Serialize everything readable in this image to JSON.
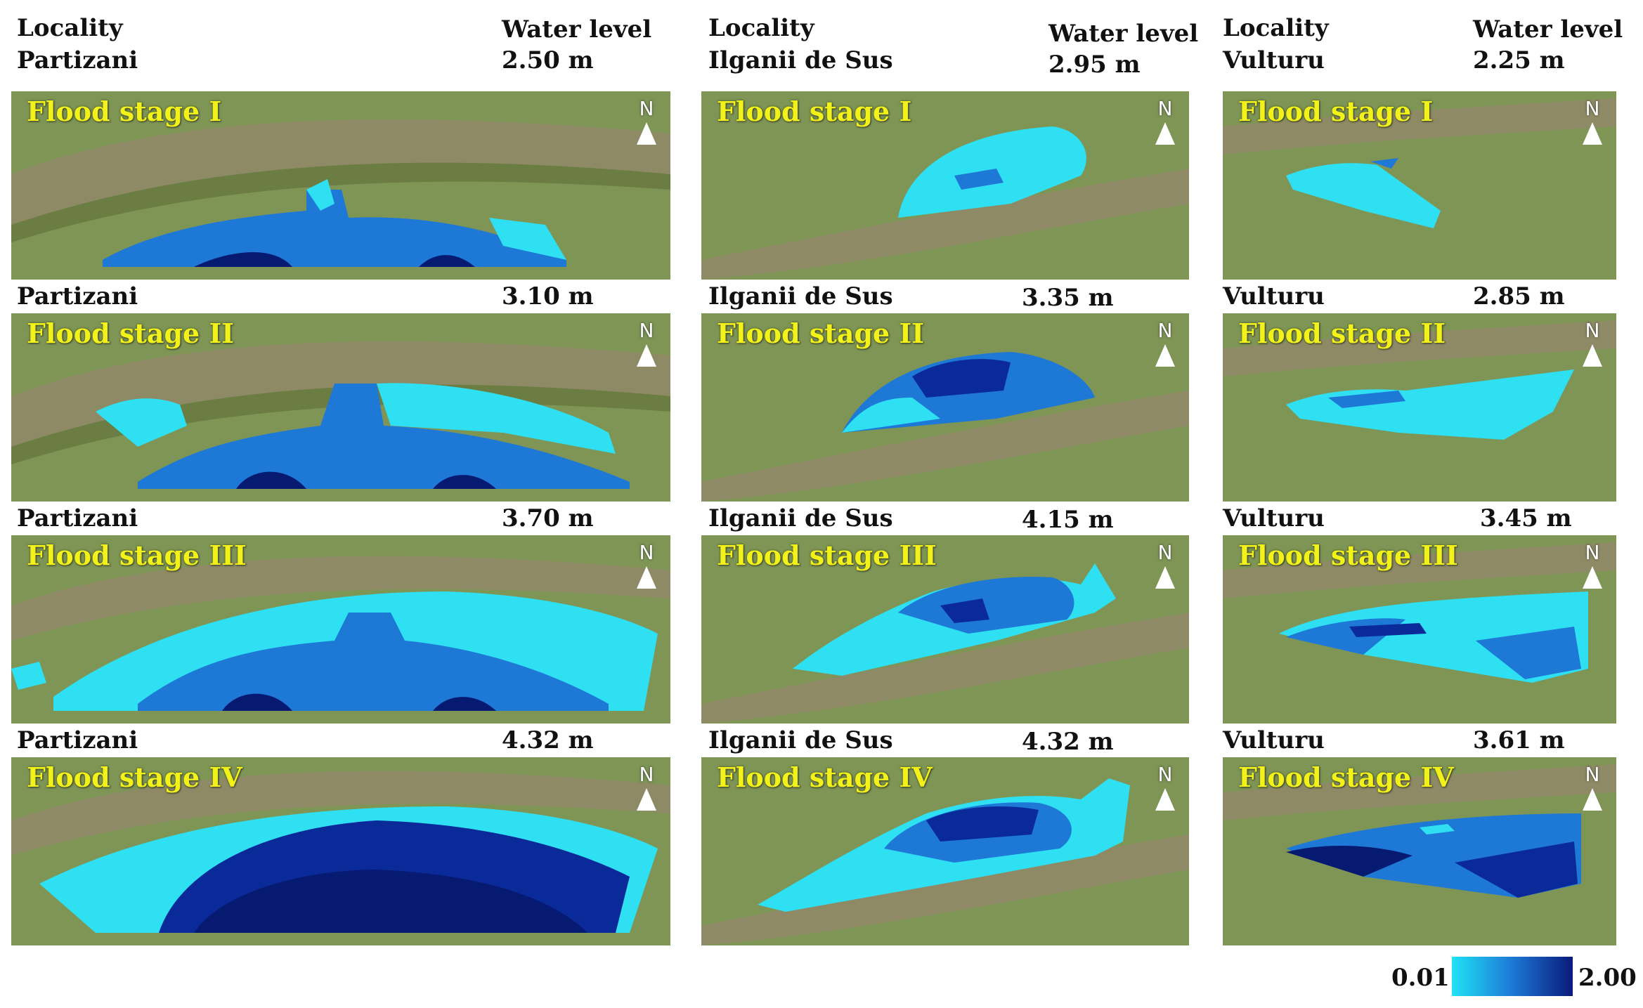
{
  "columns": [
    {
      "locality_label": "Locality",
      "locality": "Partizani",
      "water_level_label": "Water level",
      "stages": [
        {
          "stage": "Flood stage I",
          "locality": "Partizani",
          "level": "2.50 m"
        },
        {
          "stage": "Flood stage II",
          "locality": "Partizani",
          "level": "3.10 m"
        },
        {
          "stage": "Flood stage III",
          "locality": "Partizani",
          "level": "3.70 m"
        },
        {
          "stage": "Flood stage IV",
          "locality": "Partizani",
          "level": "4.32 m"
        }
      ]
    },
    {
      "locality_label": "Locality",
      "locality": "Ilganii de Sus",
      "water_level_label": "Water level",
      "stages": [
        {
          "stage": "Flood stage I",
          "locality": "Ilganii de Sus",
          "level": "2.95 m"
        },
        {
          "stage": "Flood stage II",
          "locality": "Ilganii de Sus",
          "level": "3.35 m"
        },
        {
          "stage": "Flood stage III",
          "locality": "Ilganii de Sus",
          "level": "4.15 m"
        },
        {
          "stage": "Flood stage IV",
          "locality": "Ilganii de Sus",
          "level": "4.32 m"
        }
      ]
    },
    {
      "locality_label": "Locality",
      "locality": "Vulturu",
      "water_level_label": "Water level",
      "stages": [
        {
          "stage": "Flood stage I",
          "locality": "Vulturu",
          "level": "2.25 m"
        },
        {
          "stage": "Flood stage II",
          "locality": "Vulturu",
          "level": "2.85 m"
        },
        {
          "stage": "Flood stage III",
          "locality": "Vulturu",
          "level": "3.45 m"
        },
        {
          "stage": "Flood stage IV",
          "locality": "Vulturu",
          "level": "3.61 m"
        }
      ]
    }
  ],
  "north_label": "N",
  "legend": {
    "min": "0.01",
    "max": "2.00",
    "color_min": "#1fe3f5",
    "color_max": "#0a1a7a"
  },
  "colors": {
    "river": "#8f8a66",
    "land": "#7e9556",
    "flood_light": "#2ee0f2",
    "flood_mid": "#1d78d6",
    "flood_dark": "#0a2a9a",
    "flood_darkest": "#071a72",
    "stage_text": "#f2f21a"
  }
}
